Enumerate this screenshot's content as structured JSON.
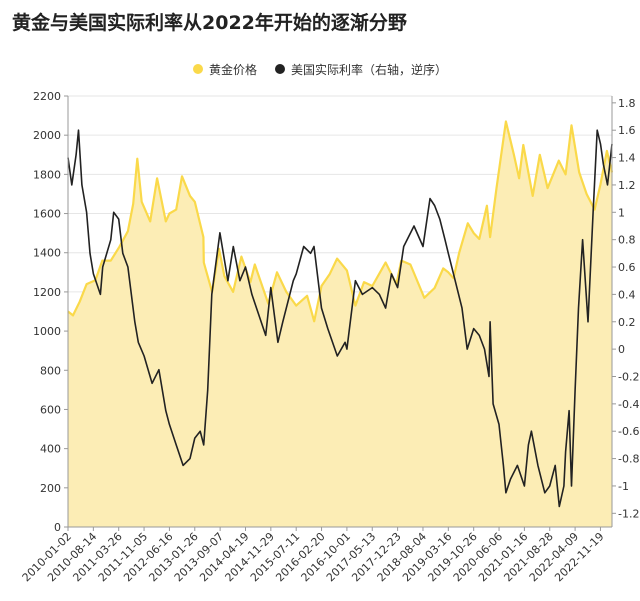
{
  "chart_data": {
    "type": "area-line",
    "title": "黄金与美国实际利率从2022年开始的逐渐分野",
    "legend": {
      "placement": "top-center",
      "items": [
        {
          "name": "黄金价格",
          "color": "#FAD94A"
        },
        {
          "name": "美国实际利率（右轴，逆序）",
          "color": "#222222"
        }
      ]
    },
    "x_tick_labels": [
      "2010-01-02",
      "2010-08-14",
      "2011-03-26",
      "2011-11-05",
      "2012-06-16",
      "2013-01-26",
      "2013-09-07",
      "2014-04-19",
      "2014-11-29",
      "2015-07-11",
      "2016-02-20",
      "2016-10-01",
      "2017-05-13",
      "2017-12-23",
      "2018-08-04",
      "2019-03-16",
      "2019-10-26",
      "2020-06-06",
      "2021-01-16",
      "2021-08-28",
      "2022-04-09",
      "2022-11-19"
    ],
    "x_range": [
      "2010-01-02",
      "2023-03-01"
    ],
    "left_axis": {
      "ticks": [
        0,
        200,
        400,
        600,
        800,
        1000,
        1200,
        1400,
        1600,
        1800,
        2000,
        2200
      ],
      "ylim": [
        0,
        2200
      ]
    },
    "right_axis": {
      "ticks": [
        "1.8",
        "1.6",
        "1.4",
        "1.2",
        "1",
        "0.8",
        "0.6",
        "0.4",
        "0.2",
        "0",
        "-0.2",
        "-0.4",
        "-0.6",
        "-0.8",
        "-1",
        "-1.2"
      ],
      "ylim": [
        -1.3,
        1.85
      ],
      "inverted": true
    },
    "grid": true,
    "series": [
      {
        "name": "黄金价格",
        "style": "area",
        "color": "#FAD94A",
        "fill": "#FCEDB5",
        "points": [
          [
            "2010-01-02",
            1100
          ],
          [
            "2010-02-15",
            1080
          ],
          [
            "2010-04-15",
            1150
          ],
          [
            "2010-06-15",
            1240
          ],
          [
            "2010-09-01",
            1260
          ],
          [
            "2010-11-01",
            1360
          ],
          [
            "2011-01-15",
            1360
          ],
          [
            "2011-04-01",
            1430
          ],
          [
            "2011-06-15",
            1510
          ],
          [
            "2011-08-01",
            1650
          ],
          [
            "2011-09-06",
            1880
          ],
          [
            "2011-10-15",
            1660
          ],
          [
            "2011-12-29",
            1560
          ],
          [
            "2012-02-28",
            1780
          ],
          [
            "2012-05-15",
            1560
          ],
          [
            "2012-06-16",
            1600
          ],
          [
            "2012-08-15",
            1620
          ],
          [
            "2012-10-05",
            1790
          ],
          [
            "2012-12-15",
            1690
          ],
          [
            "2013-01-26",
            1660
          ],
          [
            "2013-04-12",
            1480
          ],
          [
            "2013-04-16",
            1350
          ],
          [
            "2013-06-28",
            1200
          ],
          [
            "2013-08-28",
            1420
          ],
          [
            "2013-10-15",
            1280
          ],
          [
            "2013-12-31",
            1200
          ],
          [
            "2014-03-14",
            1380
          ],
          [
            "2014-06-01",
            1250
          ],
          [
            "2014-07-10",
            1340
          ],
          [
            "2014-11-07",
            1140
          ],
          [
            "2015-01-22",
            1300
          ],
          [
            "2015-04-15",
            1200
          ],
          [
            "2015-07-11",
            1130
          ],
          [
            "2015-10-15",
            1180
          ],
          [
            "2015-12-17",
            1050
          ],
          [
            "2016-02-20",
            1230
          ],
          [
            "2016-05-01",
            1290
          ],
          [
            "2016-07-06",
            1370
          ],
          [
            "2016-10-01",
            1310
          ],
          [
            "2016-12-15",
            1130
          ],
          [
            "2017-03-01",
            1250
          ],
          [
            "2017-05-13",
            1230
          ],
          [
            "2017-09-08",
            1350
          ],
          [
            "2017-12-12",
            1240
          ],
          [
            "2018-01-25",
            1360
          ],
          [
            "2018-04-15",
            1340
          ],
          [
            "2018-08-16",
            1170
          ],
          [
            "2018-11-15",
            1220
          ],
          [
            "2019-01-30",
            1320
          ],
          [
            "2019-03-16",
            1300
          ],
          [
            "2019-05-01",
            1270
          ],
          [
            "2019-06-20",
            1400
          ],
          [
            "2019-09-04",
            1550
          ],
          [
            "2019-10-26",
            1500
          ],
          [
            "2019-12-15",
            1470
          ],
          [
            "2020-02-20",
            1640
          ],
          [
            "2020-03-19",
            1480
          ],
          [
            "2020-05-15",
            1730
          ],
          [
            "2020-08-06",
            2070
          ],
          [
            "2020-10-15",
            1900
          ],
          [
            "2020-11-30",
            1780
          ],
          [
            "2021-01-06",
            1950
          ],
          [
            "2021-03-30",
            1690
          ],
          [
            "2021-06-01",
            1900
          ],
          [
            "2021-08-09",
            1730
          ],
          [
            "2021-11-16",
            1870
          ],
          [
            "2022-01-15",
            1800
          ],
          [
            "2022-03-08",
            2050
          ],
          [
            "2022-05-15",
            1810
          ],
          [
            "2022-07-20",
            1700
          ],
          [
            "2022-09-28",
            1620
          ],
          [
            "2022-11-19",
            1750
          ],
          [
            "2023-01-15",
            1920
          ],
          [
            "2023-03-01",
            1810
          ]
        ]
      },
      {
        "name": "美国实际利率（右轴，逆序）",
        "style": "line",
        "axis": "right",
        "color": "#222222",
        "points": [
          [
            "2010-01-02",
            1.4
          ],
          [
            "2010-02-05",
            1.2
          ],
          [
            "2010-03-15",
            1.42
          ],
          [
            "2010-04-05",
            1.6
          ],
          [
            "2010-05-05",
            1.2
          ],
          [
            "2010-06-15",
            1.0
          ],
          [
            "2010-07-15",
            0.7
          ],
          [
            "2010-08-14",
            0.55
          ],
          [
            "2010-10-15",
            0.4
          ],
          [
            "2010-11-05",
            0.6
          ],
          [
            "2011-01-15",
            0.8
          ],
          [
            "2011-02-10",
            1.0
          ],
          [
            "2011-03-26",
            0.95
          ],
          [
            "2011-05-01",
            0.7
          ],
          [
            "2011-06-15",
            0.6
          ],
          [
            "2011-08-15",
            0.2
          ],
          [
            "2011-09-15",
            0.05
          ],
          [
            "2011-11-05",
            -0.05
          ],
          [
            "2012-01-15",
            -0.25
          ],
          [
            "2012-03-15",
            -0.15
          ],
          [
            "2012-05-15",
            -0.45
          ],
          [
            "2012-06-16",
            -0.55
          ],
          [
            "2012-08-15",
            -0.7
          ],
          [
            "2012-10-15",
            -0.85
          ],
          [
            "2012-12-15",
            -0.8
          ],
          [
            "2013-01-26",
            -0.65
          ],
          [
            "2013-03-15",
            -0.6
          ],
          [
            "2013-04-15",
            -0.7
          ],
          [
            "2013-05-20",
            -0.3
          ],
          [
            "2013-06-25",
            0.4
          ],
          [
            "2013-09-05",
            0.85
          ],
          [
            "2013-11-15",
            0.5
          ],
          [
            "2014-01-01",
            0.75
          ],
          [
            "2014-03-01",
            0.5
          ],
          [
            "2014-04-19",
            0.6
          ],
          [
            "2014-06-15",
            0.4
          ],
          [
            "2014-08-15",
            0.25
          ],
          [
            "2014-10-15",
            0.1
          ],
          [
            "2014-11-29",
            0.45
          ],
          [
            "2015-01-30",
            0.05
          ],
          [
            "2015-03-15",
            0.2
          ],
          [
            "2015-06-15",
            0.5
          ],
          [
            "2015-07-11",
            0.55
          ],
          [
            "2015-09-15",
            0.75
          ],
          [
            "2015-11-15",
            0.7
          ],
          [
            "2015-12-15",
            0.75
          ],
          [
            "2016-02-20",
            0.3
          ],
          [
            "2016-04-15",
            0.15
          ],
          [
            "2016-07-08",
            -0.05
          ],
          [
            "2016-09-15",
            0.05
          ],
          [
            "2016-10-01",
            0.0
          ],
          [
            "2016-12-15",
            0.5
          ],
          [
            "2017-02-15",
            0.4
          ],
          [
            "2017-05-13",
            0.45
          ],
          [
            "2017-07-15",
            0.4
          ],
          [
            "2017-09-08",
            0.3
          ],
          [
            "2017-10-30",
            0.55
          ],
          [
            "2017-12-23",
            0.45
          ],
          [
            "2018-02-15",
            0.75
          ],
          [
            "2018-05-17",
            0.9
          ],
          [
            "2018-08-04",
            0.75
          ],
          [
            "2018-10-05",
            1.1
          ],
          [
            "2018-11-15",
            1.05
          ],
          [
            "2018-12-31",
            0.95
          ],
          [
            "2019-02-15",
            0.8
          ],
          [
            "2019-03-16",
            0.7
          ],
          [
            "2019-05-01",
            0.55
          ],
          [
            "2019-07-15",
            0.3
          ],
          [
            "2019-08-30",
            0.0
          ],
          [
            "2019-10-26",
            0.15
          ],
          [
            "2019-12-15",
            0.1
          ],
          [
            "2020-01-30",
            0.0
          ],
          [
            "2020-03-09",
            -0.2
          ],
          [
            "2020-03-19",
            0.2
          ],
          [
            "2020-04-15",
            -0.4
          ],
          [
            "2020-06-06",
            -0.55
          ],
          [
            "2020-07-15",
            -0.85
          ],
          [
            "2020-08-06",
            -1.05
          ],
          [
            "2020-09-15",
            -0.95
          ],
          [
            "2020-11-15",
            -0.85
          ],
          [
            "2021-01-16",
            -1.0
          ],
          [
            "2021-02-20",
            -0.7
          ],
          [
            "2021-03-19",
            -0.6
          ],
          [
            "2021-05-15",
            -0.85
          ],
          [
            "2021-07-15",
            -1.05
          ],
          [
            "2021-08-28",
            -1.0
          ],
          [
            "2021-10-15",
            -0.85
          ],
          [
            "2021-11-20",
            -1.15
          ],
          [
            "2021-12-31",
            -1.0
          ],
          [
            "2022-01-15",
            -0.75
          ],
          [
            "2022-02-15",
            -0.45
          ],
          [
            "2022-03-08",
            -1.0
          ],
          [
            "2022-04-09",
            -0.3
          ],
          [
            "2022-05-09",
            0.3
          ],
          [
            "2022-06-14",
            0.8
          ],
          [
            "2022-08-01",
            0.2
          ],
          [
            "2022-09-15",
            1.0
          ],
          [
            "2022-10-21",
            1.6
          ],
          [
            "2022-11-19",
            1.5
          ],
          [
            "2022-12-15",
            1.35
          ],
          [
            "2023-01-20",
            1.2
          ],
          [
            "2023-03-01",
            1.5
          ]
        ]
      }
    ]
  }
}
